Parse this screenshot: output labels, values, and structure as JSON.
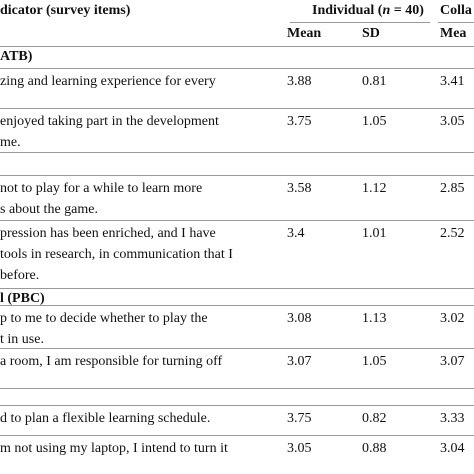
{
  "header": {
    "indicator": "dicator (survey items)",
    "group1_pre": "Individual (",
    "group1_n": "n",
    "group1_post": " = 40)",
    "group2": "Colla",
    "mean": "Mean",
    "sd": "SD",
    "mean2": "Mea"
  },
  "rows": [
    {
      "section": "ATB)"
    },
    {
      "item": [
        "zing and learning experience for every"
      ],
      "mean": "3.88",
      "sd": "0.81",
      "mean2": "3.41"
    },
    {
      "item": [
        "enjoyed taking part in the development",
        "me."
      ],
      "mean": "3.75",
      "sd": "1.05",
      "mean2": "3.05"
    },
    {
      "section": ""
    },
    {
      "item": [
        "not to play for a while to learn more",
        "s about the game."
      ],
      "mean": "3.58",
      "sd": "1.12",
      "mean2": "2.85"
    },
    {
      "item": [
        "pression has been enriched, and I have",
        "tools in research, in communication that I",
        "before."
      ],
      "mean": "3.4",
      "sd": "1.01",
      "mean2": "2.52"
    },
    {
      "section": "l (PBC)"
    },
    {
      "item": [
        "p to me to decide whether to play the",
        "t in use."
      ],
      "mean": "3.08",
      "sd": "1.13",
      "mean2": "3.02"
    },
    {
      "item": [
        "a room, I am responsible for turning off"
      ],
      "mean": "3.07",
      "sd": "1.05",
      "mean2": "3.07"
    },
    {
      "section": ""
    },
    {
      "item": [
        "d to plan a flexible learning schedule."
      ],
      "mean": "3.75",
      "sd": "0.82",
      "mean2": "3.33"
    },
    {
      "item": [
        "m not using my laptop, I intend to turn it"
      ],
      "mean": "3.05",
      "sd": "0.88",
      "mean2": "3.04"
    }
  ]
}
